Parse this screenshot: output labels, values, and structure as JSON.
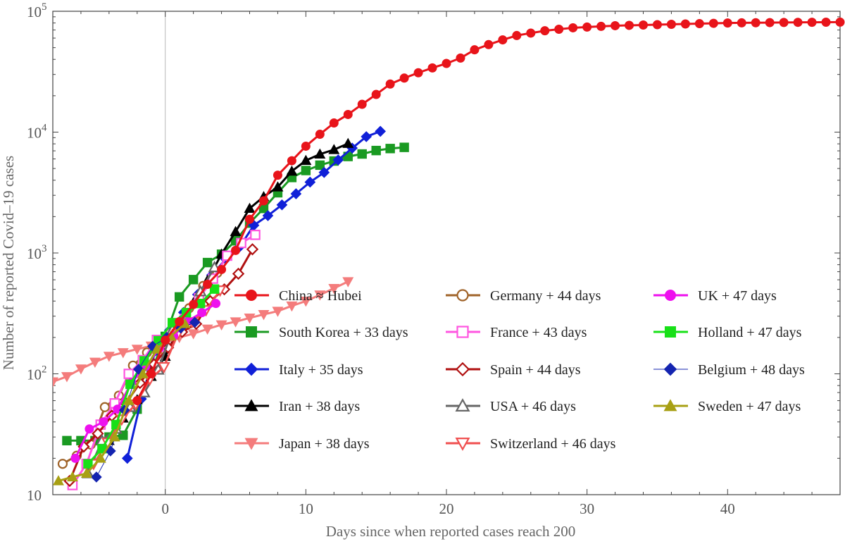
{
  "chart_data": {
    "type": "line",
    "title": "",
    "xlabel": "Days since when reported cases reach 200",
    "ylabel": "Number of reported Covid–19 cases",
    "y_scale": "log",
    "xlim": [
      -8,
      48
    ],
    "ylim": [
      10,
      100000
    ],
    "x_ticks": [
      {
        "value": 0,
        "label": "0"
      },
      {
        "value": 10,
        "label": "10"
      },
      {
        "value": 20,
        "label": "20"
      },
      {
        "value": 30,
        "label": "30"
      },
      {
        "value": 40,
        "label": "40"
      }
    ],
    "y_ticks": [
      {
        "value": 10,
        "base": "10",
        "exp": ""
      },
      {
        "value": 100,
        "base": "10",
        "exp": "2"
      },
      {
        "value": 1000,
        "base": "10",
        "exp": "3"
      },
      {
        "value": 10000,
        "base": "10",
        "exp": "4"
      },
      {
        "value": 100000,
        "base": "10",
        "exp": "5"
      }
    ],
    "vertical_reference_line_x": 0,
    "grid": false,
    "legend_position": "lower-right, inside plot, three columns",
    "series": [
      {
        "name": "China ≈ Hubei",
        "color": "#e8141a",
        "marker": "circle-filled",
        "line_width": 3,
        "x": [
          -2,
          -1,
          0,
          1,
          2,
          3,
          4,
          5,
          6,
          7,
          8,
          9,
          10,
          11,
          12,
          13,
          14,
          15,
          16,
          17,
          18,
          19,
          20,
          21,
          22,
          23,
          24,
          25,
          26,
          27,
          28,
          29,
          30,
          31,
          32,
          33,
          34,
          35,
          36,
          37,
          38,
          39,
          40,
          41,
          42,
          43,
          44,
          45,
          46,
          47,
          48
        ],
        "y": [
          60,
          100,
          190,
          270,
          375,
          550,
          730,
          1050,
          1900,
          2700,
          4400,
          5800,
          7650,
          9600,
          11900,
          14000,
          17000,
          20500,
          25000,
          28000,
          31000,
          34000,
          37000,
          41000,
          48000,
          53000,
          58000,
          63000,
          66000,
          69000,
          71000,
          73000,
          74000,
          75000,
          76000,
          76500,
          77000,
          77500,
          78000,
          78500,
          79000,
          79500,
          80000,
          80200,
          80400,
          80600,
          80800,
          81000,
          81100,
          81200,
          81300
        ]
      },
      {
        "name": "South Korea + 33 days",
        "color": "#1a9a22",
        "marker": "square-filled",
        "line_width": 3,
        "x": [
          -7,
          -6,
          -5,
          -4,
          -3,
          -2,
          -1,
          0,
          1,
          2,
          3,
          4,
          5,
          6,
          7,
          8,
          9,
          10,
          11,
          12,
          13,
          14,
          15,
          16,
          17
        ],
        "y": [
          28,
          28,
          28,
          30,
          31,
          51,
          104,
          204,
          433,
          602,
          833,
          977,
          1261,
          1766,
          2337,
          3150,
          4212,
          4812,
          5328,
          5766,
          6284,
          6593,
          7041,
          7314,
          7478
        ]
      },
      {
        "name": "Italy + 35 days",
        "color": "#1020d8",
        "marker": "diamond-filled",
        "line_width": 3,
        "x": [
          -2.7,
          -1.7,
          -0.7,
          0.3,
          1.3,
          2.3,
          3.3,
          4.3,
          5.3,
          6.3,
          7.3,
          8.3,
          9.3,
          10.3,
          11.3,
          12.3,
          13.3,
          14.3,
          15.3
        ],
        "y": [
          20,
          62,
          155,
          229,
          322,
          453,
          655,
          888,
          1128,
          1694,
          2036,
          2502,
          3089,
          3858,
          4636,
          5883,
          7375,
          9172,
          10149
        ]
      },
      {
        "name": "Iran + 38 days",
        "color": "#000000",
        "marker": "triangle-filled",
        "line_width": 3,
        "x": [
          -4,
          -3,
          -2,
          -1,
          0,
          1,
          2,
          3,
          4,
          5,
          6,
          7,
          8,
          9,
          10,
          11,
          12,
          13
        ],
        "y": [
          28,
          43,
          61,
          95,
          139,
          245,
          388,
          593,
          978,
          1501,
          2336,
          2922,
          3513,
          4747,
          5823,
          6566,
          7161,
          8042
        ]
      },
      {
        "name": "Japan + 38 days",
        "color": "#f47c7c",
        "marker": "triangle-down-filled",
        "line_width": 3,
        "x": [
          -8,
          -7,
          -6,
          -5,
          -4,
          -3,
          -2,
          -1,
          0,
          1,
          2,
          3,
          4,
          5,
          6,
          7,
          8,
          9,
          10,
          11,
          12,
          13
        ],
        "y": [
          86,
          95,
          110,
          125,
          140,
          150,
          160,
          170,
          180,
          200,
          215,
          235,
          255,
          270,
          290,
          310,
          330,
          365,
          400,
          450,
          510,
          580
        ]
      },
      {
        "name": "Germany + 44 days",
        "color": "#a0642a",
        "marker": "circle-open",
        "line_width": 3,
        "x": [
          -7.3,
          -6.3,
          -5.3,
          -4.3,
          -3.3,
          -2.3,
          -1.3,
          -0.3,
          0.7,
          1.7,
          2.7,
          3.7
        ],
        "y": [
          18,
          21,
          26,
          53,
          66,
          117,
          150,
          188,
          240,
          349,
          534,
          684
        ]
      },
      {
        "name": "France + 43 days",
        "color": "#ff55e0",
        "marker": "square-open",
        "line_width": 3,
        "x": [
          -6.6,
          -5.6,
          -4.6,
          -3.6,
          -2.6,
          -1.6,
          -0.6,
          0.4,
          1.4,
          2.4,
          3.4,
          4.4,
          5.4,
          6.4
        ],
        "y": [
          12,
          18,
          38,
          57,
          100,
          130,
          191,
          212,
          285,
          423,
          613,
          949,
          1209,
          1412
        ]
      },
      {
        "name": "Spain + 44 days",
        "color": "#b01010",
        "marker": "diamond-open",
        "line_width": 3,
        "x": [
          -6.8,
          -5.8,
          -4.8,
          -3.8,
          -2.8,
          -1.8,
          -0.8,
          0.2,
          1.2,
          2.2,
          3.2,
          4.2,
          5.2,
          6.2
        ],
        "y": [
          13,
          25,
          32,
          45,
          57,
          84,
          120,
          165,
          222,
          259,
          400,
          500,
          673,
          1073
        ]
      },
      {
        "name": "USA + 46 days",
        "color": "#666666",
        "marker": "triangle-open",
        "line_width": 3,
        "x": [
          -5.5,
          -4.5,
          -3.5,
          -2.5,
          -1.5,
          -0.5,
          0.5,
          1.5,
          2.5,
          3.5
        ],
        "y": [
          15,
          28,
          35,
          53,
          70,
          108,
          230,
          290,
          480,
          760
        ]
      },
      {
        "name": "Switzerland + 46 days",
        "color": "#f05050",
        "marker": "triangle-down-open",
        "line_width": 3,
        "x": [
          -5.1,
          -4.1,
          -3.1,
          -2.1,
          -1.1,
          -0.1,
          0.9,
          1.9,
          2.9,
          3.9
        ],
        "y": [
          18,
          27,
          42,
          56,
          90,
          114,
          214,
          268,
          337,
          491
        ]
      },
      {
        "name": "UK + 47 days",
        "color": "#ee10ee",
        "marker": "circle-filled",
        "line_width": 3,
        "x": [
          -6.4,
          -5.4,
          -4.4,
          -3.4,
          -2.4,
          -1.4,
          -0.4,
          0.6,
          1.6,
          2.6,
          3.6
        ],
        "y": [
          20,
          35,
          40,
          51,
          85,
          115,
          163,
          206,
          273,
          321,
          382
        ]
      },
      {
        "name": "Holland + 47 days",
        "color": "#18e018",
        "marker": "square-filled",
        "line_width": 3,
        "x": [
          -5.5,
          -4.5,
          -3.5,
          -2.5,
          -1.5,
          -0.5,
          0.5,
          1.5,
          2.5,
          3.5
        ],
        "y": [
          18,
          24,
          38,
          82,
          128,
          188,
          265,
          321,
          382,
          503
        ]
      },
      {
        "name": "Belgium + 48 days",
        "color": "#1424b0",
        "marker": "diamond-filled",
        "line_width": 1,
        "x": [
          -4.9,
          -3.9,
          -2.9,
          -1.9,
          -0.9,
          0.1,
          1.1,
          2.1
        ],
        "y": [
          14,
          23,
          50,
          109,
          169,
          200,
          239,
          267
        ]
      },
      {
        "name": "Sweden + 47 days",
        "color": "#a8a014",
        "marker": "triangle-filled",
        "line_width": 3,
        "x": [
          -7.6,
          -6.6,
          -5.6,
          -4.6,
          -3.6,
          -2.6,
          -1.6,
          -0.6,
          0.4,
          1.4
        ],
        "y": [
          13,
          14,
          15,
          20,
          30,
          60,
          100,
          160,
          205,
          260
        ]
      }
    ]
  }
}
